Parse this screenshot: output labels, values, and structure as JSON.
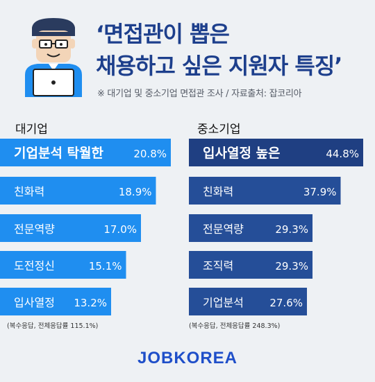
{
  "headline": {
    "line1": "‘면접관이 뽑은",
    "line2": "채용하고 싶은 지원자 특징’"
  },
  "source_note": "※ 대기업 및 중소기업 면접관 조사 / 자료출처: 잡코리아",
  "brand": "JOBKOREA",
  "colors": {
    "large_primary": "#1f8ef0",
    "large_top": "#1f8ef0",
    "small_primary": "#254e98",
    "small_top": "#1f3f82",
    "headline": "#1d3f8c",
    "background": "#eef1f4"
  },
  "chart_data": [
    {
      "type": "bar",
      "orientation": "horizontal",
      "title": "대기업",
      "categories": [
        "기업분석 탁월한",
        "친화력",
        "전문역량",
        "도전정신",
        "입사열정"
      ],
      "values": [
        20.8,
        18.9,
        17.0,
        15.1,
        13.2
      ],
      "value_labels": [
        "20.8%",
        "18.9%",
        "17.0%",
        "15.1%",
        "13.2%"
      ],
      "footnote": "(복수응답, 전체응답률 115.1%)"
    },
    {
      "type": "bar",
      "orientation": "horizontal",
      "title": "중소기업",
      "categories": [
        "입사열정 높은",
        "친화력",
        "전문역량",
        "조직력",
        "기업분석"
      ],
      "values": [
        44.8,
        37.9,
        29.3,
        29.3,
        27.6
      ],
      "value_labels": [
        "44.8%",
        "37.9%",
        "29.3%",
        "29.3%",
        "27.6%"
      ],
      "footnote": "(복수응답, 전체응답률 248.3%)"
    }
  ]
}
